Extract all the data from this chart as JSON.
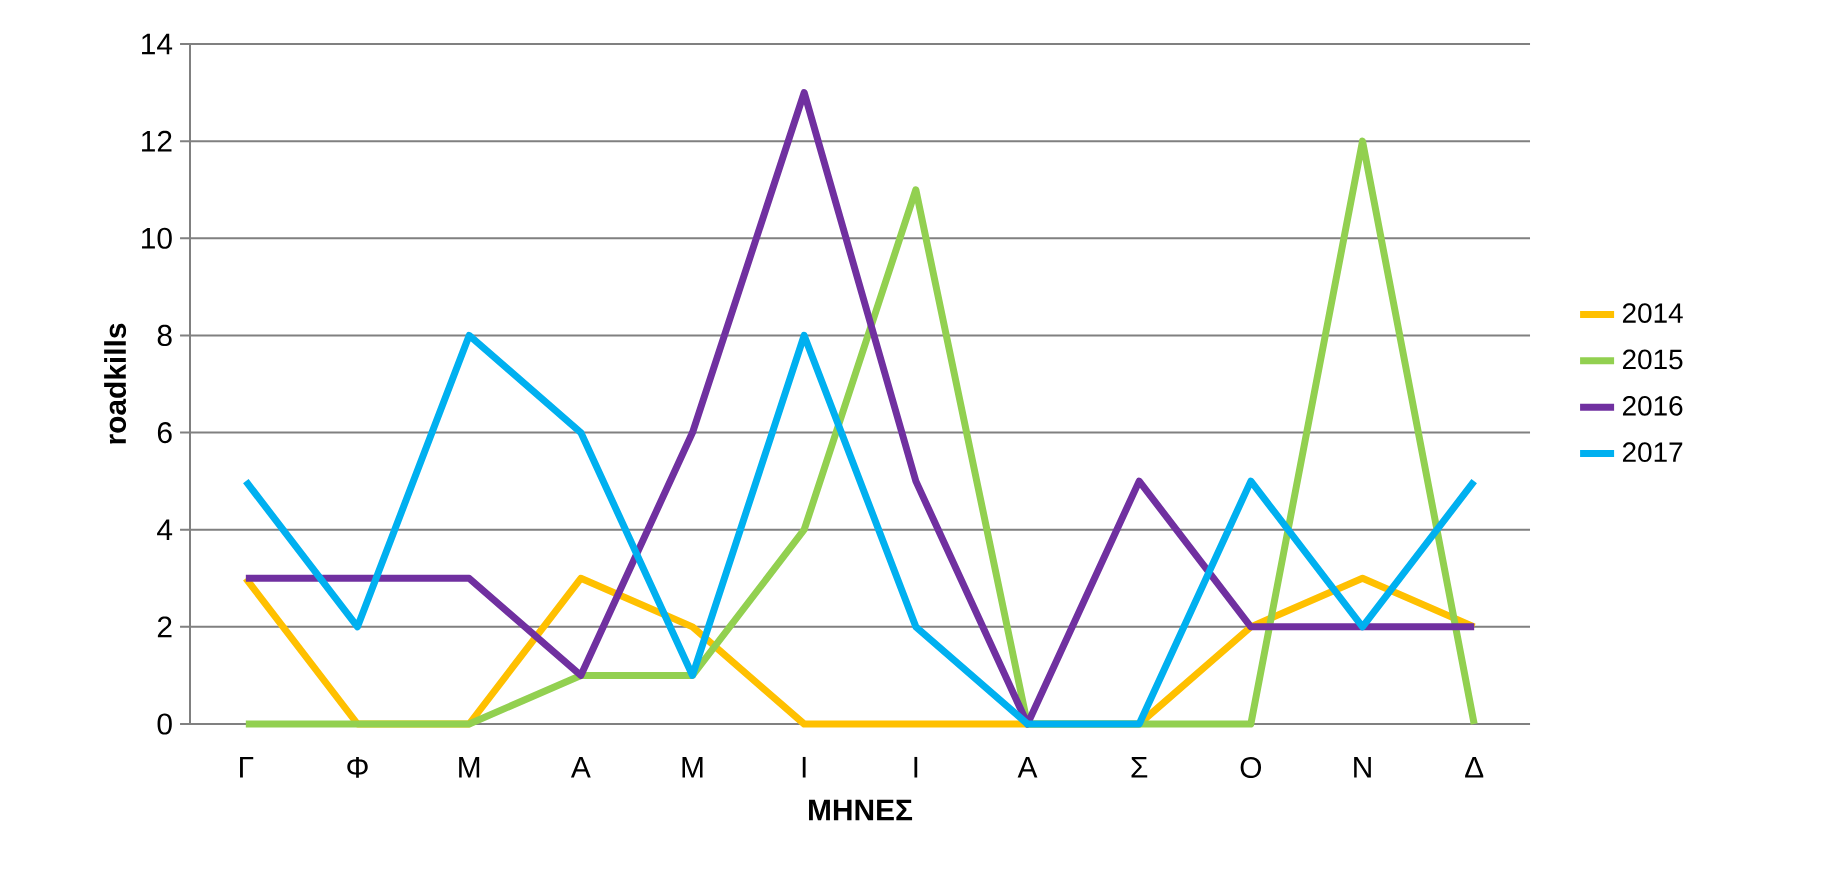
{
  "chart_data": {
    "type": "line",
    "xlabel": "ΜΗΝΕΣ",
    "ylabel": "roadkills",
    "categories": [
      "Γ",
      "Φ",
      "Μ",
      "Α",
      "Μ",
      "Ι",
      "Ι",
      "Α",
      "Σ",
      "Ο",
      "Ν",
      "Δ"
    ],
    "series": [
      {
        "name": "2014",
        "color": "#ffc000",
        "values": [
          3,
          0,
          0,
          3,
          2,
          0,
          0,
          0,
          0,
          2,
          3,
          2
        ]
      },
      {
        "name": "2015",
        "color": "#92d050",
        "values": [
          0,
          0,
          0,
          1,
          1,
          4,
          11,
          0,
          0,
          0,
          12,
          0
        ]
      },
      {
        "name": "2016",
        "color": "#7030a0",
        "values": [
          3,
          3,
          3,
          1,
          6,
          13,
          5,
          0,
          5,
          2,
          2,
          2
        ]
      },
      {
        "name": "2017",
        "color": "#00b0f0",
        "values": [
          5,
          2,
          8,
          6,
          1,
          8,
          2,
          0,
          0,
          5,
          2,
          5
        ]
      }
    ],
    "ylim": [
      0,
      14
    ],
    "yticks": [
      0,
      2,
      4,
      6,
      8,
      10,
      12,
      14
    ],
    "grid": "y",
    "legend": "right",
    "marker": "none",
    "line_style": "solid"
  }
}
